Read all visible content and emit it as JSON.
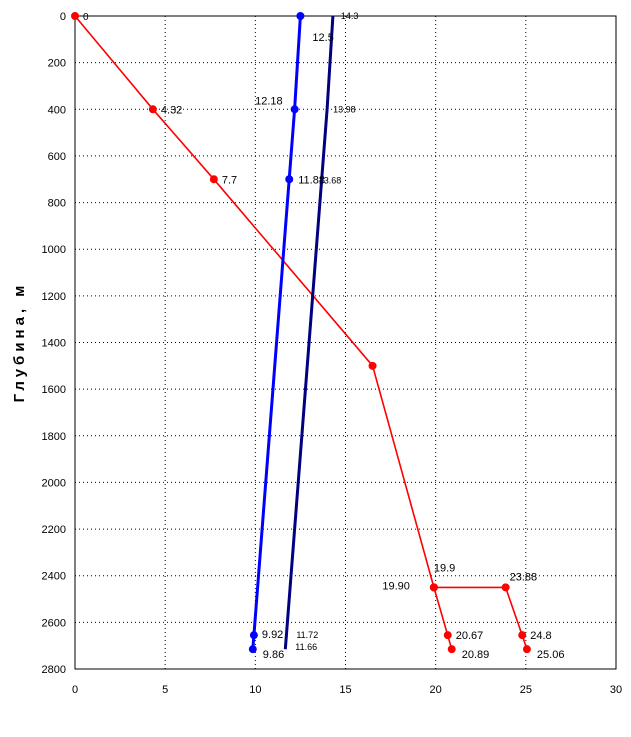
{
  "chart_data": {
    "type": "line",
    "title": "",
    "xlabel": "",
    "ylabel": "Глубина, м",
    "xlim": [
      0,
      30
    ],
    "ylim": [
      0,
      2800
    ],
    "y_inverted": true,
    "grid": true,
    "legend": "none",
    "x_ticks": [
      "0",
      "5",
      "10",
      "15",
      "20",
      "25",
      "30"
    ],
    "y_ticks": [
      "0",
      "200",
      "400",
      "600",
      "800",
      "1000",
      "1200",
      "1400",
      "1600",
      "1800",
      "2000",
      "2200",
      "2400",
      "2600",
      "2800"
    ],
    "series": [
      {
        "color": "#ff0000",
        "marker": true,
        "points": [
          {
            "x": 0,
            "y": 0,
            "label": "0"
          },
          {
            "x": 4.32,
            "y": 400,
            "label": "4.32"
          },
          {
            "x": 7.7,
            "y": 700,
            "label": "7.7"
          },
          {
            "x": 16.5,
            "y": 1500,
            "label": ""
          },
          {
            "x": 19.9,
            "y": 2450,
            "label": "19.90"
          },
          {
            "x": 20.67,
            "y": 2655,
            "label": "20.67"
          },
          {
            "x": 20.89,
            "y": 2715,
            "label": "20.89"
          }
        ]
      },
      {
        "color": "#ff0000",
        "marker": true,
        "points": [
          {
            "x": 19.9,
            "y": 2450,
            "label": "19.9"
          },
          {
            "x": 23.88,
            "y": 2450,
            "label": "23.88"
          },
          {
            "x": 24.8,
            "y": 2655,
            "label": "24.8"
          },
          {
            "x": 25.06,
            "y": 2715,
            "label": "25.06"
          }
        ]
      },
      {
        "color": "#0000ff",
        "marker": true,
        "points": [
          {
            "x": 12.5,
            "y": 0,
            "label": "12.5"
          },
          {
            "x": 12.18,
            "y": 400,
            "label": "12.18"
          },
          {
            "x": 11.88,
            "y": 700,
            "label": "11.88"
          },
          {
            "x": 9.92,
            "y": 2655,
            "label": "9.92"
          },
          {
            "x": 9.86,
            "y": 2715,
            "label": "9.86"
          }
        ]
      },
      {
        "color": "#000080",
        "marker": false,
        "points": [
          {
            "x": 14.3,
            "y": 0,
            "label": "14.3"
          },
          {
            "x": 13.98,
            "y": 400,
            "label": "13.98"
          },
          {
            "x": 13.68,
            "y": 700,
            "label": "13.68"
          },
          {
            "x": 11.72,
            "y": 2655,
            "label": "11.72"
          },
          {
            "x": 11.66,
            "y": 2715,
            "label": "11.66"
          }
        ]
      }
    ]
  }
}
